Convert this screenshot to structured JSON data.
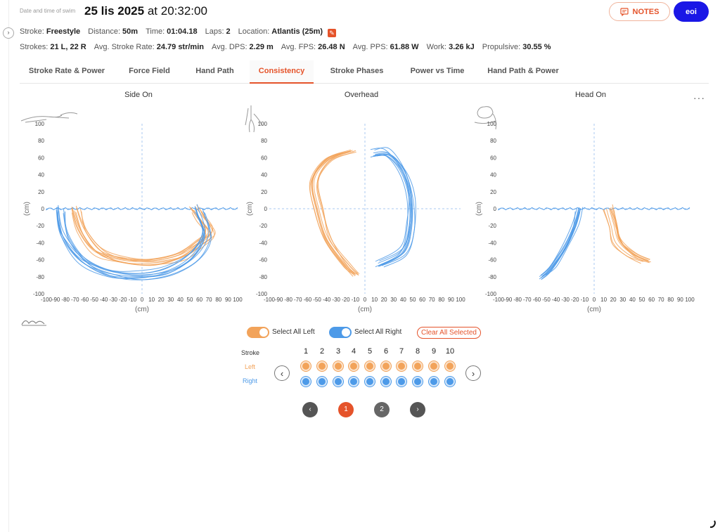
{
  "header": {
    "label": "Date and time of swim",
    "date": "25 lis 2025",
    "at": "at",
    "time": "20:32:00",
    "notes_label": "NOTES",
    "user_label": "eoi"
  },
  "info_row1": [
    {
      "k": "Stroke:",
      "v": "Freestyle"
    },
    {
      "k": "Distance:",
      "v": "50m"
    },
    {
      "k": "Time:",
      "v": "01:04.18"
    },
    {
      "k": "Laps:",
      "v": "2"
    },
    {
      "k": "Location:",
      "v": "Atlantis (25m)"
    }
  ],
  "info_row2": [
    {
      "k": "Strokes:",
      "v": "21 L, 22 R"
    },
    {
      "k": "Avg. Stroke Rate:",
      "v": "24.79 str/min"
    },
    {
      "k": "Avg. DPS:",
      "v": "2.29 m"
    },
    {
      "k": "Avg. FPS:",
      "v": "26.48 N"
    },
    {
      "k": "Avg. PPS:",
      "v": "61.88 W"
    },
    {
      "k": "Work:",
      "v": "3.26 kJ"
    },
    {
      "k": "Propulsive:",
      "v": "30.55 %"
    }
  ],
  "tabs": [
    "Stroke Rate & Power",
    "Force Field",
    "Hand Path",
    "Consistency",
    "Stroke Phases",
    "Power vs Time",
    "Hand Path & Power"
  ],
  "active_tab": 3,
  "colors": {
    "accent": "#e5532a",
    "left": "#f2a35a",
    "right": "#4d9ae8",
    "user": "#1a17e6",
    "water": "#4d9ae8"
  },
  "plots": [
    {
      "title": "Side On",
      "ylabel": "(cm)",
      "xlabel": "(cm)",
      "icon": "swimmer-side-icon"
    },
    {
      "title": "Overhead",
      "ylabel": "(cm)",
      "xlabel": "(cm)",
      "icon": "swimmer-overhead-icon"
    },
    {
      "title": "Head On",
      "ylabel": "(cm)",
      "xlabel": "(cm)",
      "icon": "swimmer-headon-icon"
    }
  ],
  "chart_data": {
    "type": "line",
    "xlim": [
      -100,
      100
    ],
    "ylim": [
      -100,
      100
    ],
    "x_ticks": [
      -100,
      -90,
      -80,
      -70,
      -60,
      -50,
      -40,
      -30,
      -20,
      -10,
      0,
      10,
      20,
      30,
      40,
      50,
      60,
      70,
      80,
      90,
      100
    ],
    "y_ticks": [
      100,
      80,
      60,
      40,
      20,
      0,
      -20,
      -40,
      -60,
      -80,
      -100
    ],
    "series": [
      {
        "name": "Left",
        "plot": "Side On",
        "points": [
          [
            -70,
            0
          ],
          [
            -62,
            -25
          ],
          [
            -45,
            -50
          ],
          [
            -20,
            -60
          ],
          [
            10,
            -62
          ],
          [
            40,
            -55
          ],
          [
            60,
            -40
          ],
          [
            72,
            -28
          ],
          [
            62,
            -10
          ],
          [
            55,
            0
          ]
        ]
      },
      {
        "name": "Right",
        "plot": "Side On",
        "points": [
          [
            -85,
            0
          ],
          [
            -80,
            -30
          ],
          [
            -60,
            -60
          ],
          [
            -30,
            -75
          ],
          [
            0,
            -78
          ],
          [
            30,
            -72
          ],
          [
            55,
            -55
          ],
          [
            68,
            -30
          ],
          [
            62,
            -5
          ],
          [
            60,
            0
          ]
        ]
      },
      {
        "name": "Left",
        "plot": "Overhead",
        "points": [
          [
            -15,
            70
          ],
          [
            -40,
            60
          ],
          [
            -55,
            35
          ],
          [
            -50,
            0
          ],
          [
            -40,
            -35
          ],
          [
            -20,
            -65
          ],
          [
            -10,
            -75
          ]
        ]
      },
      {
        "name": "Right",
        "plot": "Overhead",
        "points": [
          [
            10,
            65
          ],
          [
            25,
            65
          ],
          [
            40,
            45
          ],
          [
            48,
            15
          ],
          [
            48,
            -20
          ],
          [
            40,
            -50
          ],
          [
            15,
            -65
          ]
        ]
      },
      {
        "name": "Left",
        "plot": "Head On",
        "points": [
          [
            15,
            0
          ],
          [
            20,
            -20
          ],
          [
            25,
            -40
          ],
          [
            40,
            -55
          ],
          [
            55,
            -62
          ]
        ]
      },
      {
        "name": "Right",
        "plot": "Head On",
        "points": [
          [
            -15,
            0
          ],
          [
            -20,
            -20
          ],
          [
            -30,
            -45
          ],
          [
            -45,
            -70
          ],
          [
            -55,
            -80
          ]
        ]
      }
    ],
    "legend": "none",
    "grid": false
  },
  "controls": {
    "select_left": "Select All Left",
    "select_right": "Select All Right",
    "clear": "Clear All Selected",
    "stroke_label": "Stroke",
    "left_label": "Left",
    "right_label": "Right",
    "columns": [
      "1",
      "2",
      "3",
      "4",
      "5",
      "6",
      "7",
      "8",
      "9",
      "10"
    ],
    "pages": [
      "1",
      "2"
    ],
    "current_page": "1"
  }
}
